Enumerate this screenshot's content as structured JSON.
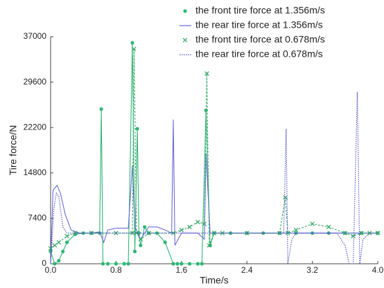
{
  "chart_data": {
    "type": "line",
    "x_label": "Time/s",
    "y_label": "Tire force/N",
    "xlim": [
      0,
      4
    ],
    "xticks": [
      {
        "value": 0,
        "label": "0.0"
      },
      0.8,
      1.6,
      2.4,
      3.2,
      {
        "value": 4,
        "label": "4.0"
      }
    ],
    "ylim": [
      0,
      37000
    ],
    "yticks": [
      0,
      7400,
      14800,
      22200,
      29600,
      37000
    ],
    "grid": false,
    "legend": "top-right",
    "series": [
      {
        "name": "the front tire force at 1.356m/s",
        "color": "#2fb574",
        "line": "solid",
        "marker": "dot",
        "x": [
          0,
          0.05,
          0.1,
          0.15,
          0.2,
          0.3,
          0.4,
          0.5,
          0.6,
          0.62,
          0.64,
          0.7,
          0.8,
          0.9,
          0.95,
          1.0,
          1.03,
          1.06,
          1.08,
          1.1,
          1.15,
          1.2,
          1.3,
          1.4,
          1.5,
          1.55,
          1.6,
          1.7,
          1.8,
          1.85,
          1.9,
          1.95,
          2.0,
          2.2,
          2.4,
          2.6,
          2.8,
          3.0,
          3.2,
          3.4,
          3.6,
          3.8,
          4.0
        ],
        "values": [
          2000,
          0,
          500,
          2000,
          3500,
          4800,
          5000,
          5000,
          5000,
          25200,
          0,
          0,
          0,
          0,
          0,
          36000,
          2000,
          22000,
          5000,
          3000,
          6000,
          5000,
          5000,
          3500,
          0,
          0,
          0,
          0,
          0,
          0,
          25000,
          3000,
          5000,
          5000,
          5000,
          5000,
          5000,
          5000,
          5000,
          5000,
          5000,
          5000,
          5000
        ]
      },
      {
        "name": "the rear tire force at 1.356m/s",
        "color": "#6a6ad8",
        "line": "solid",
        "marker": "none",
        "x": [
          0,
          0.03,
          0.08,
          0.12,
          0.18,
          0.25,
          0.35,
          0.5,
          0.6,
          0.65,
          0.7,
          0.8,
          0.95,
          1.0,
          1.03,
          1.1,
          1.2,
          1.3,
          1.4,
          1.48,
          1.5,
          1.52,
          1.6,
          1.8,
          1.88,
          1.9,
          1.95,
          2.0,
          2.4,
          3.0,
          3.6,
          4.0
        ],
        "values": [
          0,
          12000,
          12800,
          11500,
          8000,
          5500,
          5000,
          5000,
          5200,
          3500,
          5500,
          5800,
          5800,
          16000,
          6000,
          4000,
          6000,
          6000,
          5500,
          5000,
          23500,
          3000,
          5000,
          5000,
          4000,
          18000,
          5000,
          5000,
          5000,
          5000,
          5000,
          5000
        ]
      },
      {
        "name": "the front tire force at 0.678m/s",
        "color": "#3aa86b",
        "line": "dashed",
        "marker": "x",
        "x": [
          0,
          0.05,
          0.1,
          0.2,
          0.3,
          0.5,
          0.8,
          1.0,
          1.02,
          1.05,
          1.1,
          1.2,
          1.5,
          1.6,
          1.7,
          1.8,
          1.88,
          1.91,
          1.94,
          2.0,
          2.1,
          2.4,
          2.8,
          2.87,
          2.9,
          3.0,
          3.2,
          3.4,
          3.6,
          3.7,
          3.8,
          3.9,
          4.0
        ],
        "values": [
          2500,
          3000,
          3500,
          4500,
          5000,
          5000,
          5000,
          5000,
          35000,
          5000,
          4000,
          5000,
          5000,
          5500,
          6000,
          6800,
          6500,
          31000,
          3000,
          5000,
          5000,
          5000,
          5000,
          10800,
          5000,
          5500,
          6500,
          6000,
          5000,
          4500,
          5000,
          5000,
          5000
        ]
      },
      {
        "name": "the rear tire force at 0.678m/s",
        "color": "#4f4fc0",
        "line": "dotted",
        "marker": "none",
        "x": [
          0,
          0.04,
          0.07,
          0.1,
          0.15,
          0.2,
          0.3,
          0.5,
          1.0,
          1.5,
          2.0,
          2.5,
          2.85,
          2.88,
          2.9,
          2.95,
          3.0,
          3.5,
          3.6,
          3.65,
          3.7,
          3.75,
          3.78,
          3.82,
          3.9,
          4.0
        ],
        "values": [
          0,
          9000,
          11500,
          11000,
          6000,
          5000,
          5000,
          5000,
          5000,
          5000,
          5000,
          5000,
          5000,
          22000,
          0,
          4000,
          5000,
          5000,
          3000,
          0,
          0,
          28000,
          0,
          4000,
          5000,
          5000
        ]
      }
    ]
  }
}
